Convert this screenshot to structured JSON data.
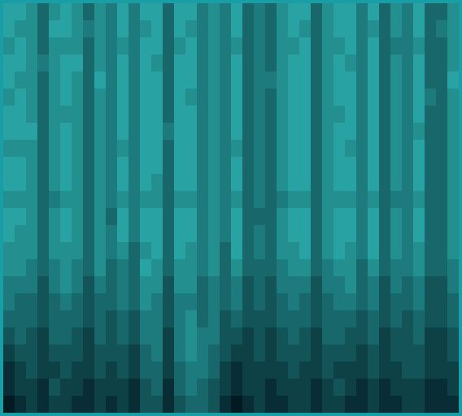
{
  "chart_data": {
    "type": "heatmap",
    "tick_labels": false,
    "zlim": [
      0,
      9
    ],
    "cells": [
      [
        7,
        7,
        6,
        4,
        6,
        7,
        6,
        4,
        6,
        5,
        7,
        5,
        7,
        7,
        4,
        7,
        7,
        5,
        6,
        5,
        7,
        4,
        5,
        4,
        6,
        7,
        7,
        4,
        6,
        7,
        7,
        5,
        7,
        4,
        6,
        5,
        7,
        4,
        4,
        6
      ],
      [
        7,
        6,
        6,
        4,
        7,
        7,
        6,
        5,
        6,
        5,
        7,
        5,
        6,
        7,
        4,
        7,
        6,
        5,
        6,
        5,
        7,
        4,
        5,
        4,
        6,
        7,
        6,
        4,
        6,
        7,
        7,
        5,
        6,
        4,
        6,
        5,
        7,
        4,
        5,
        6
      ],
      [
        6,
        7,
        6,
        4,
        6,
        6,
        6,
        4,
        6,
        5,
        6,
        5,
        7,
        7,
        4,
        6,
        7,
        5,
        6,
        5,
        6,
        4,
        5,
        4,
        6,
        6,
        7,
        4,
        6,
        6,
        7,
        5,
        7,
        4,
        5,
        5,
        6,
        4,
        4,
        6
      ],
      [
        7,
        7,
        6,
        5,
        6,
        7,
        7,
        4,
        6,
        5,
        7,
        5,
        7,
        6,
        4,
        7,
        7,
        5,
        6,
        5,
        7,
        4,
        5,
        4,
        6,
        7,
        7,
        4,
        6,
        7,
        6,
        5,
        7,
        4,
        6,
        5,
        7,
        4,
        4,
        6
      ],
      [
        7,
        6,
        6,
        4,
        6,
        7,
        6,
        4,
        7,
        5,
        7,
        5,
        7,
        7,
        4,
        7,
        7,
        5,
        6,
        5,
        7,
        4,
        5,
        5,
        6,
        7,
        7,
        4,
        6,
        7,
        7,
        5,
        7,
        4,
        6,
        5,
        7,
        4,
        4,
        7
      ],
      [
        6,
        7,
        6,
        4,
        6,
        7,
        6,
        4,
        6,
        5,
        7,
        5,
        7,
        7,
        4,
        7,
        6,
        5,
        6,
        5,
        7,
        4,
        5,
        4,
        6,
        7,
        7,
        4,
        6,
        7,
        7,
        5,
        7,
        4,
        6,
        5,
        7,
        5,
        4,
        6
      ],
      [
        7,
        7,
        6,
        4,
        6,
        6,
        6,
        4,
        6,
        5,
        7,
        5,
        7,
        7,
        4,
        7,
        7,
        5,
        6,
        5,
        7,
        4,
        5,
        4,
        6,
        7,
        7,
        4,
        6,
        6,
        7,
        5,
        7,
        4,
        6,
        5,
        7,
        4,
        4,
        6
      ],
      [
        7,
        7,
        7,
        4,
        6,
        7,
        6,
        4,
        6,
        5,
        7,
        5,
        7,
        7,
        5,
        7,
        7,
        5,
        6,
        5,
        7,
        4,
        5,
        4,
        6,
        7,
        7,
        4,
        6,
        7,
        7,
        5,
        7,
        4,
        6,
        5,
        6,
        4,
        4,
        6
      ],
      [
        6,
        6,
        6,
        4,
        6,
        7,
        6,
        4,
        6,
        5,
        6,
        5,
        7,
        7,
        4,
        7,
        7,
        5,
        6,
        5,
        6,
        4,
        5,
        4,
        6,
        7,
        7,
        4,
        6,
        7,
        6,
        5,
        7,
        4,
        6,
        5,
        7,
        4,
        4,
        6
      ],
      [
        7,
        7,
        6,
        4,
        6,
        7,
        6,
        4,
        6,
        5,
        7,
        5,
        7,
        7,
        4,
        7,
        7,
        5,
        6,
        5,
        7,
        4,
        5,
        4,
        6,
        7,
        7,
        4,
        6,
        7,
        7,
        5,
        7,
        4,
        6,
        5,
        7,
        4,
        4,
        6
      ],
      [
        7,
        7,
        6,
        4,
        6,
        7,
        6,
        4,
        6,
        5,
        7,
        5,
        7,
        6,
        4,
        7,
        7,
        5,
        6,
        5,
        7,
        4,
        5,
        4,
        6,
        7,
        7,
        4,
        6,
        7,
        7,
        5,
        7,
        4,
        6,
        5,
        7,
        4,
        4,
        6
      ],
      [
        6,
        6,
        6,
        4,
        5,
        6,
        6,
        4,
        6,
        5,
        6,
        5,
        6,
        6,
        4,
        6,
        6,
        5,
        6,
        5,
        6,
        4,
        5,
        4,
        5,
        6,
        6,
        4,
        6,
        6,
        6,
        5,
        6,
        4,
        5,
        5,
        6,
        4,
        4,
        6
      ],
      [
        7,
        7,
        6,
        4,
        6,
        7,
        6,
        4,
        6,
        4,
        7,
        5,
        7,
        7,
        4,
        7,
        7,
        5,
        6,
        5,
        7,
        4,
        4,
        4,
        6,
        7,
        7,
        4,
        6,
        7,
        7,
        5,
        7,
        4,
        6,
        5,
        7,
        4,
        4,
        6
      ],
      [
        7,
        6,
        6,
        4,
        6,
        7,
        6,
        4,
        6,
        5,
        7,
        5,
        7,
        7,
        4,
        7,
        7,
        5,
        6,
        5,
        7,
        4,
        5,
        4,
        6,
        7,
        7,
        4,
        6,
        7,
        7,
        5,
        7,
        4,
        6,
        5,
        7,
        4,
        4,
        6
      ],
      [
        6,
        6,
        6,
        4,
        6,
        6,
        6,
        4,
        6,
        5,
        6,
        4,
        6,
        7,
        4,
        7,
        6,
        5,
        6,
        4,
        7,
        4,
        5,
        4,
        6,
        6,
        7,
        4,
        6,
        7,
        6,
        5,
        7,
        4,
        6,
        5,
        6,
        4,
        4,
        6
      ],
      [
        6,
        6,
        5,
        4,
        5,
        6,
        5,
        4,
        6,
        4,
        5,
        4,
        7,
        6,
        4,
        6,
        6,
        5,
        6,
        4,
        6,
        4,
        4,
        4,
        5,
        6,
        6,
        4,
        5,
        6,
        6,
        4,
        6,
        4,
        5,
        5,
        6,
        4,
        4,
        5
      ],
      [
        5,
        5,
        5,
        3,
        5,
        6,
        5,
        3,
        5,
        4,
        5,
        4,
        6,
        6,
        3,
        6,
        6,
        4,
        5,
        4,
        5,
        3,
        4,
        3,
        5,
        5,
        5,
        3,
        5,
        5,
        6,
        4,
        5,
        3,
        5,
        4,
        5,
        3,
        3,
        5
      ],
      [
        5,
        4,
        4,
        3,
        4,
        5,
        4,
        3,
        4,
        4,
        5,
        4,
        6,
        5,
        3,
        5,
        5,
        4,
        5,
        4,
        5,
        3,
        4,
        3,
        4,
        5,
        4,
        3,
        4,
        5,
        5,
        4,
        5,
        3,
        4,
        4,
        5,
        3,
        3,
        4
      ],
      [
        4,
        4,
        4,
        3,
        4,
        4,
        4,
        3,
        4,
        3,
        4,
        3,
        5,
        5,
        3,
        5,
        6,
        4,
        5,
        3,
        4,
        3,
        3,
        3,
        4,
        4,
        4,
        3,
        4,
        4,
        4,
        3,
        4,
        3,
        4,
        3,
        4,
        3,
        3,
        4
      ],
      [
        3,
        4,
        3,
        2,
        4,
        4,
        3,
        2,
        4,
        3,
        4,
        3,
        5,
        5,
        2,
        5,
        6,
        5,
        5,
        3,
        3,
        2,
        3,
        2,
        3,
        4,
        3,
        2,
        4,
        4,
        3,
        3,
        4,
        2,
        3,
        3,
        4,
        2,
        2,
        3
      ],
      [
        2,
        3,
        3,
        2,
        3,
        3,
        3,
        2,
        3,
        3,
        3,
        2,
        4,
        5,
        2,
        5,
        6,
        5,
        4,
        3,
        2,
        2,
        3,
        2,
        3,
        3,
        3,
        2,
        3,
        3,
        3,
        2,
        3,
        2,
        3,
        3,
        3,
        2,
        2,
        3
      ],
      [
        1,
        2,
        3,
        2,
        2,
        3,
        2,
        2,
        3,
        2,
        3,
        2,
        4,
        4,
        2,
        4,
        5,
        5,
        4,
        2,
        1,
        2,
        2,
        2,
        2,
        3,
        2,
        2,
        3,
        2,
        2,
        2,
        3,
        2,
        2,
        3,
        3,
        2,
        2,
        2
      ],
      [
        1,
        2,
        2,
        1,
        3,
        2,
        2,
        1,
        2,
        2,
        2,
        1,
        3,
        4,
        1,
        4,
        5,
        4,
        3,
        2,
        1,
        2,
        2,
        1,
        2,
        2,
        2,
        1,
        2,
        3,
        2,
        1,
        2,
        1,
        2,
        2,
        2,
        1,
        1,
        2
      ],
      [
        0,
        1,
        2,
        1,
        2,
        2,
        1,
        1,
        2,
        1,
        2,
        1,
        3,
        3,
        1,
        3,
        4,
        4,
        3,
        1,
        0,
        1,
        2,
        1,
        1,
        2,
        2,
        1,
        2,
        2,
        1,
        1,
        2,
        1,
        1,
        2,
        2,
        1,
        1,
        1
      ]
    ]
  }
}
